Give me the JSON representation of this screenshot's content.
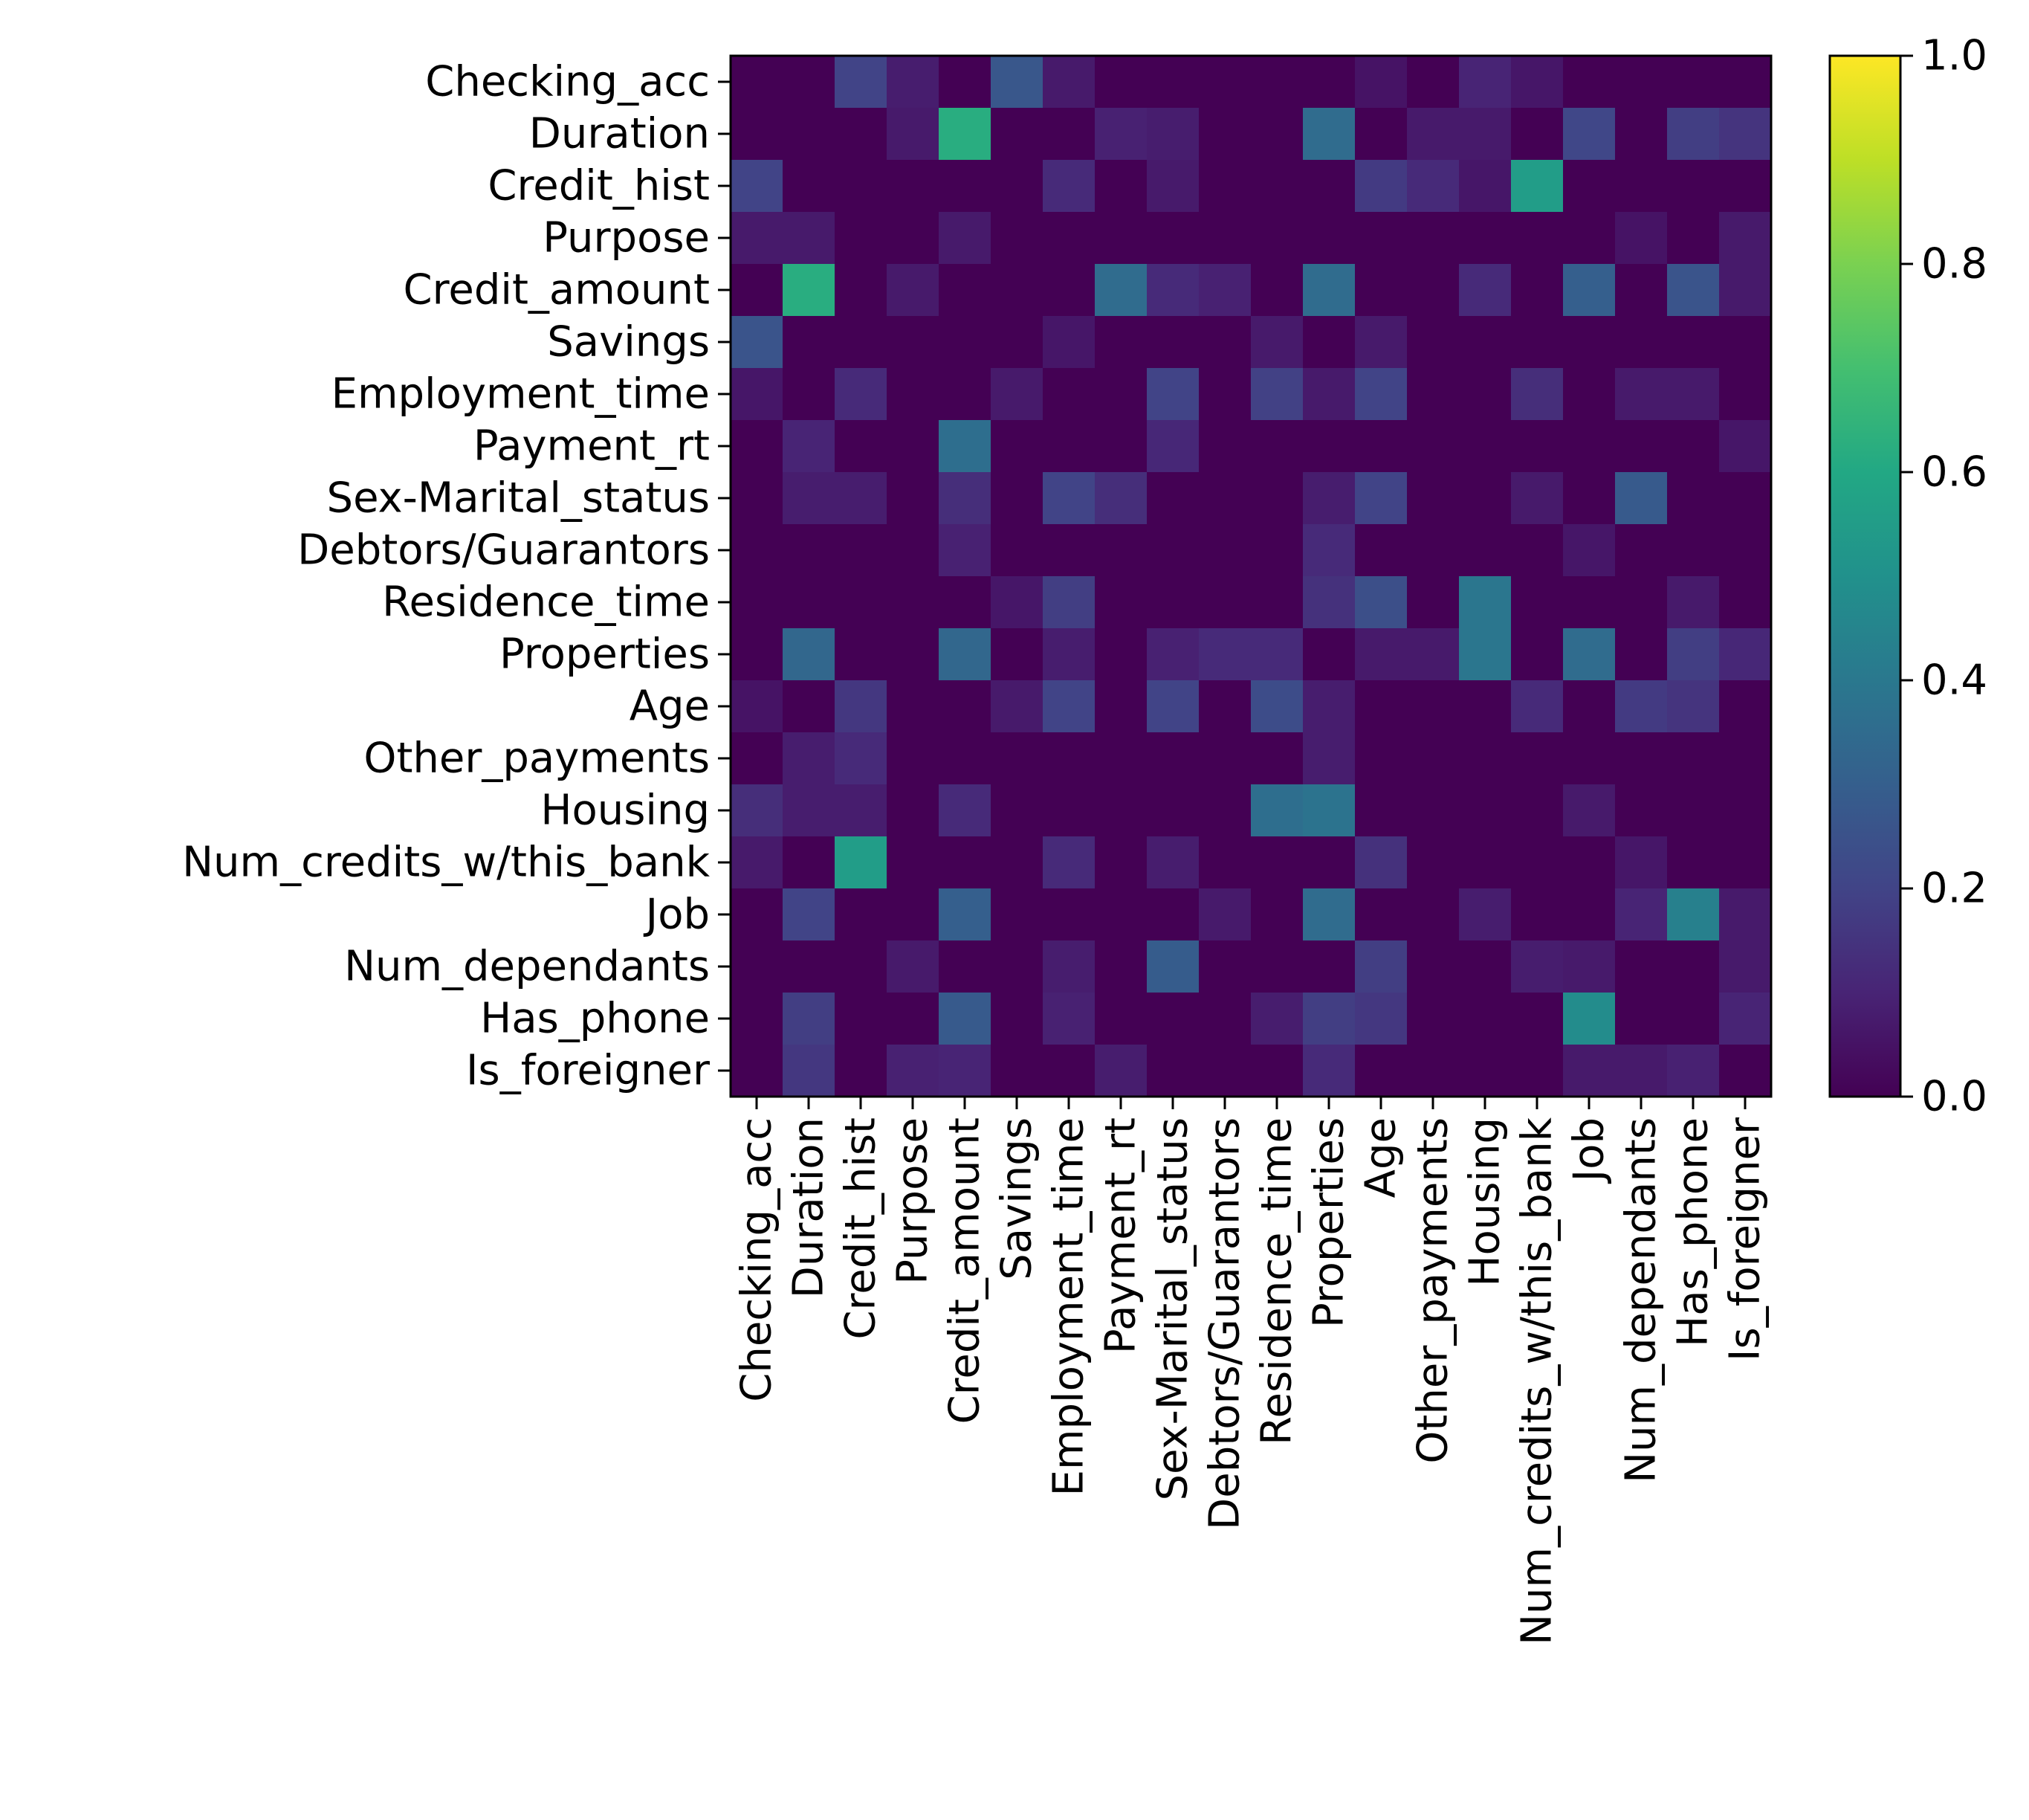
{
  "chart_data": {
    "type": "heatmap",
    "colormap": "viridis",
    "xlabel": "",
    "ylabel": "",
    "categories": [
      "Checking_acc",
      "Duration",
      "Credit_hist",
      "Purpose",
      "Credit_amount",
      "Savings",
      "Employment_time",
      "Payment_rt",
      "Sex-Marital_status",
      "Debtors/Guarantors",
      "Residence_time",
      "Properties",
      "Age",
      "Other_payments",
      "Housing",
      "Num_credits_w/this_bank",
      "Job",
      "Num_dependants",
      "Has_phone",
      "Is_foreigner"
    ],
    "values": [
      [
        0.0,
        0.0,
        0.2,
        0.08,
        0.0,
        0.27,
        0.07,
        0.0,
        0.0,
        0.0,
        0.0,
        0.0,
        0.05,
        0.0,
        0.1,
        0.06,
        0.0,
        0.0,
        0.0,
        0.0
      ],
      [
        0.0,
        0.0,
        0.0,
        0.07,
        0.62,
        0.0,
        0.0,
        0.09,
        0.08,
        0.0,
        0.0,
        0.35,
        0.0,
        0.07,
        0.07,
        0.0,
        0.21,
        0.0,
        0.18,
        0.15
      ],
      [
        0.2,
        0.0,
        0.0,
        0.0,
        0.0,
        0.0,
        0.12,
        0.0,
        0.07,
        0.0,
        0.0,
        0.0,
        0.17,
        0.12,
        0.06,
        0.55,
        0.0,
        0.0,
        0.0,
        0.0
      ],
      [
        0.07,
        0.07,
        0.0,
        0.0,
        0.07,
        0.0,
        0.0,
        0.0,
        0.0,
        0.0,
        0.0,
        0.0,
        0.0,
        0.0,
        0.0,
        0.0,
        0.0,
        0.05,
        0.0,
        0.07
      ],
      [
        0.0,
        0.62,
        0.0,
        0.07,
        0.0,
        0.0,
        0.0,
        0.35,
        0.12,
        0.09,
        0.0,
        0.35,
        0.0,
        0.0,
        0.12,
        0.0,
        0.3,
        0.0,
        0.26,
        0.07
      ],
      [
        0.26,
        0.0,
        0.0,
        0.0,
        0.0,
        0.0,
        0.06,
        0.0,
        0.0,
        0.0,
        0.07,
        0.0,
        0.07,
        0.0,
        0.0,
        0.0,
        0.0,
        0.0,
        0.0,
        0.0
      ],
      [
        0.06,
        0.0,
        0.12,
        0.0,
        0.0,
        0.07,
        0.0,
        0.0,
        0.2,
        0.0,
        0.19,
        0.07,
        0.2,
        0.0,
        0.0,
        0.13,
        0.0,
        0.07,
        0.07,
        0.0
      ],
      [
        0.0,
        0.1,
        0.0,
        0.0,
        0.36,
        0.0,
        0.0,
        0.0,
        0.11,
        0.0,
        0.0,
        0.0,
        0.0,
        0.0,
        0.0,
        0.0,
        0.0,
        0.0,
        0.0,
        0.06
      ],
      [
        0.0,
        0.08,
        0.08,
        0.0,
        0.13,
        0.0,
        0.2,
        0.13,
        0.0,
        0.0,
        0.0,
        0.08,
        0.2,
        0.0,
        0.0,
        0.07,
        0.0,
        0.28,
        0.0,
        0.0
      ],
      [
        0.0,
        0.0,
        0.0,
        0.0,
        0.09,
        0.0,
        0.0,
        0.0,
        0.0,
        0.0,
        0.0,
        0.12,
        0.0,
        0.0,
        0.0,
        0.0,
        0.06,
        0.0,
        0.0,
        0.0
      ],
      [
        0.0,
        0.0,
        0.0,
        0.0,
        0.0,
        0.06,
        0.18,
        0.0,
        0.0,
        0.0,
        0.0,
        0.14,
        0.24,
        0.0,
        0.39,
        0.0,
        0.0,
        0.0,
        0.07,
        0.0
      ],
      [
        0.0,
        0.33,
        0.0,
        0.0,
        0.33,
        0.0,
        0.08,
        0.0,
        0.09,
        0.12,
        0.12,
        0.0,
        0.07,
        0.07,
        0.39,
        0.0,
        0.35,
        0.0,
        0.18,
        0.11
      ],
      [
        0.05,
        0.0,
        0.16,
        0.0,
        0.0,
        0.07,
        0.2,
        0.0,
        0.2,
        0.0,
        0.23,
        0.08,
        0.0,
        0.0,
        0.0,
        0.12,
        0.0,
        0.17,
        0.15,
        0.0
      ],
      [
        0.0,
        0.08,
        0.12,
        0.0,
        0.0,
        0.0,
        0.0,
        0.0,
        0.0,
        0.0,
        0.0,
        0.08,
        0.0,
        0.0,
        0.0,
        0.0,
        0.0,
        0.0,
        0.0,
        0.0
      ],
      [
        0.13,
        0.08,
        0.08,
        0.0,
        0.12,
        0.0,
        0.0,
        0.0,
        0.0,
        0.0,
        0.36,
        0.38,
        0.0,
        0.0,
        0.0,
        0.0,
        0.07,
        0.0,
        0.0,
        0.0
      ],
      [
        0.07,
        0.0,
        0.55,
        0.0,
        0.0,
        0.0,
        0.12,
        0.0,
        0.08,
        0.0,
        0.0,
        0.0,
        0.14,
        0.0,
        0.0,
        0.0,
        0.0,
        0.06,
        0.0,
        0.0
      ],
      [
        0.0,
        0.2,
        0.0,
        0.0,
        0.3,
        0.0,
        0.0,
        0.0,
        0.0,
        0.07,
        0.0,
        0.35,
        0.0,
        0.0,
        0.08,
        0.0,
        0.0,
        0.1,
        0.43,
        0.07
      ],
      [
        0.0,
        0.0,
        0.0,
        0.07,
        0.0,
        0.0,
        0.08,
        0.0,
        0.29,
        0.0,
        0.0,
        0.0,
        0.18,
        0.0,
        0.0,
        0.08,
        0.07,
        0.0,
        0.0,
        0.07
      ],
      [
        0.0,
        0.18,
        0.0,
        0.0,
        0.28,
        0.0,
        0.09,
        0.0,
        0.0,
        0.0,
        0.08,
        0.18,
        0.16,
        0.0,
        0.0,
        0.0,
        0.48,
        0.0,
        0.0,
        0.1
      ],
      [
        0.0,
        0.16,
        0.0,
        0.09,
        0.1,
        0.0,
        0.0,
        0.08,
        0.0,
        0.0,
        0.0,
        0.12,
        0.0,
        0.0,
        0.0,
        0.0,
        0.07,
        0.07,
        0.09,
        0.0
      ]
    ],
    "colorbar": {
      "range": [
        0.0,
        1.0
      ],
      "ticks": [
        "0.0",
        "0.2",
        "0.4",
        "0.6",
        "0.8",
        "1.0"
      ]
    }
  }
}
